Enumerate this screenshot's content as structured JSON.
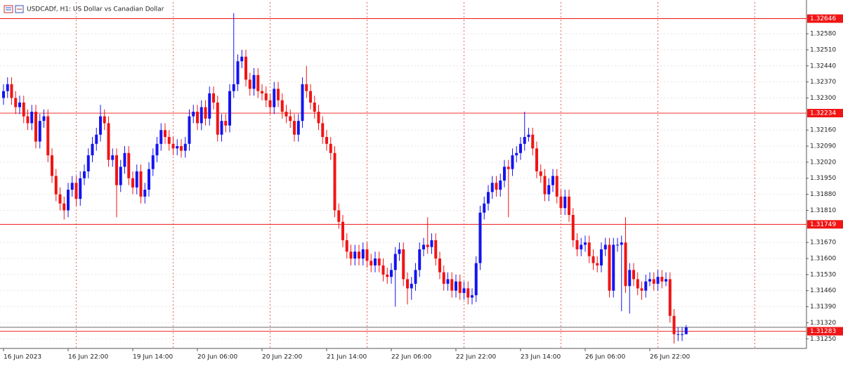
{
  "chart_data": {
    "type": "candlestick",
    "title": "USDCADf, H1:  US Dollar vs Canadian Dollar",
    "categories": [
      "16 Jun 2023",
      null,
      null,
      null,
      null,
      null,
      null,
      null,
      null,
      null,
      null,
      null,
      null,
      null,
      null,
      null,
      "16 Jun 22:00",
      null,
      null,
      null,
      null,
      null,
      null,
      null,
      null,
      null,
      null,
      null,
      null,
      null,
      null,
      null,
      "19 Jun 14:00",
      null,
      null,
      null,
      null,
      null,
      null,
      null,
      null,
      null,
      null,
      null,
      null,
      null,
      null,
      null,
      "20 Jun 06:00",
      null,
      null,
      null,
      null,
      null,
      null,
      null,
      null,
      null,
      null,
      null,
      null,
      null,
      null,
      null,
      "20 Jun 22:00",
      null,
      null,
      null,
      null,
      null,
      null,
      null,
      null,
      null,
      null,
      null,
      null,
      null,
      null,
      null,
      "21 Jun 14:00",
      null,
      null,
      null,
      null,
      null,
      null,
      null,
      null,
      null,
      null,
      null,
      null,
      null,
      null,
      null,
      "22 Jun 06:00",
      null,
      null,
      null,
      null,
      null,
      null,
      null,
      null,
      null,
      null,
      null,
      null,
      null,
      null,
      null,
      "22 Jun 22:00",
      null,
      null,
      null,
      null,
      null,
      null,
      null,
      null,
      null,
      null,
      null,
      null,
      null,
      null,
      null,
      "23 Jun 14:00",
      null,
      null,
      null,
      null,
      null,
      null,
      null,
      null,
      null,
      null,
      null,
      null,
      null,
      null,
      null,
      "26 Jun 06:00",
      null,
      null,
      null,
      null,
      null,
      null,
      null,
      null,
      null,
      null,
      null,
      null,
      null,
      null,
      null,
      "26 Jun 22:00",
      null,
      null,
      null,
      null,
      null,
      null,
      null,
      null,
      null
    ],
    "open": [
      1.323,
      1.3233,
      1.3236,
      1.323,
      1.3226,
      1.3228,
      1.3222,
      1.3219,
      1.3224,
      1.3211,
      1.322,
      1.3222,
      1.3205,
      1.3196,
      1.3188,
      1.3184,
      1.3181,
      1.319,
      1.3193,
      1.3186,
      1.3195,
      1.3198,
      1.3205,
      1.321,
      1.3214,
      1.3222,
      1.3219,
      1.3203,
      1.3205,
      1.3192,
      1.32,
      1.3206,
      1.3195,
      1.3191,
      1.3198,
      1.3187,
      1.319,
      1.3199,
      1.3205,
      1.321,
      1.3216,
      1.3213,
      1.321,
      1.3208,
      1.3209,
      1.3207,
      1.321,
      1.3222,
      1.3224,
      1.3219,
      1.3226,
      1.3221,
      1.3232,
      1.3228,
      1.3214,
      1.322,
      1.3218,
      1.3233,
      1.3236,
      1.3246,
      1.3248,
      1.3238,
      1.3234,
      1.324,
      1.3233,
      1.3232,
      1.3229,
      1.3226,
      1.3234,
      1.3229,
      1.3224,
      1.3222,
      1.322,
      1.3214,
      1.322,
      1.3236,
      1.3233,
      1.3228,
      1.3224,
      1.3219,
      1.3213,
      1.321,
      1.3206,
      1.3181,
      1.3176,
      1.3168,
      1.3163,
      1.316,
      1.3163,
      1.316,
      1.3164,
      1.3159,
      1.3157,
      1.316,
      1.3157,
      1.3153,
      1.3152,
      1.3155,
      1.3162,
      1.3164,
      1.3151,
      1.3147,
      1.3149,
      1.3155,
      1.3164,
      1.3166,
      1.3165,
      1.3168,
      1.316,
      1.3154,
      1.3149,
      1.3151,
      1.3146,
      1.315,
      1.3145,
      1.3147,
      1.3143,
      1.3144,
      1.3158,
      1.318,
      1.3184,
      1.3189,
      1.3193,
      1.319,
      1.3194,
      1.32,
      1.3199,
      1.3205,
      1.3206,
      1.321,
      1.3213,
      1.3214,
      1.3208,
      1.3198,
      1.3196,
      1.3188,
      1.3192,
      1.3196,
      1.3187,
      1.3182,
      1.3187,
      1.3179,
      1.3168,
      1.3164,
      1.3166,
      1.3167,
      1.3161,
      1.3158,
      1.3157,
      1.3164,
      1.3166,
      1.3146,
      1.3166,
      1.3166,
      1.3167,
      1.3148,
      1.3155,
      1.3151,
      1.3147,
      1.3146,
      1.315,
      1.3151,
      1.3149,
      1.3152,
      1.315,
      1.3151,
      1.3135,
      1.3127,
      1.3127,
      1.3127
    ],
    "high": [
      1.3236,
      1.3239,
      1.3239,
      1.3233,
      1.3231,
      1.3231,
      1.3225,
      1.3227,
      1.3227,
      1.3223,
      1.3225,
      1.3225,
      1.3208,
      1.3199,
      1.3191,
      1.3187,
      1.3193,
      1.3196,
      1.3196,
      1.3198,
      1.3201,
      1.3208,
      1.3213,
      1.3217,
      1.3227,
      1.3225,
      1.3222,
      1.3208,
      1.3208,
      1.3203,
      1.3209,
      1.3209,
      1.3198,
      1.3201,
      1.3201,
      1.3193,
      1.3202,
      1.3208,
      1.3213,
      1.3219,
      1.3219,
      1.3216,
      1.3213,
      1.3212,
      1.3212,
      1.3213,
      1.3225,
      1.3227,
      1.3227,
      1.3229,
      1.3229,
      1.3235,
      1.3235,
      1.3231,
      1.3223,
      1.3223,
      1.3236,
      1.3267,
      1.3249,
      1.3251,
      1.3251,
      1.3241,
      1.3243,
      1.3243,
      1.3236,
      1.3235,
      1.3232,
      1.3237,
      1.3237,
      1.3232,
      1.3227,
      1.3225,
      1.3223,
      1.3223,
      1.3239,
      1.3244,
      1.3236,
      1.3231,
      1.3227,
      1.3222,
      1.3216,
      1.3213,
      1.3209,
      1.3184,
      1.3179,
      1.3171,
      1.3166,
      1.3166,
      1.3166,
      1.3167,
      1.3167,
      1.3162,
      1.3163,
      1.3163,
      1.316,
      1.3156,
      1.3158,
      1.3165,
      1.3167,
      1.3167,
      1.3154,
      1.3152,
      1.3158,
      1.3167,
      1.3169,
      1.3178,
      1.3171,
      1.3171,
      1.3163,
      1.3157,
      1.3154,
      1.3154,
      1.3153,
      1.3153,
      1.315,
      1.315,
      1.3147,
      1.3161,
      1.3183,
      1.3187,
      1.3192,
      1.3196,
      1.3196,
      1.3197,
      1.3203,
      1.3203,
      1.3208,
      1.3209,
      1.3213,
      1.3224,
      1.3217,
      1.3217,
      1.3211,
      1.3201,
      1.3199,
      1.3195,
      1.3199,
      1.3199,
      1.319,
      1.319,
      1.319,
      1.3182,
      1.3171,
      1.3169,
      1.317,
      1.317,
      1.3164,
      1.3161,
      1.3167,
      1.3169,
      1.3169,
      1.3169,
      1.3169,
      1.317,
      1.3178,
      1.3158,
      1.3158,
      1.3154,
      1.315,
      1.3153,
      1.3154,
      1.3154,
      1.3155,
      1.3155,
      1.3154,
      1.3154,
      1.3138,
      1.313,
      1.313,
      1.3131
    ],
    "low": [
      1.3227,
      1.323,
      1.3227,
      1.3223,
      1.3223,
      1.3219,
      1.3216,
      1.3216,
      1.3208,
      1.3208,
      1.3217,
      1.3202,
      1.3193,
      1.3185,
      1.3181,
      1.3177,
      1.3178,
      1.3187,
      1.3183,
      1.3183,
      1.3192,
      1.3195,
      1.3202,
      1.3207,
      1.3211,
      1.3216,
      1.32,
      1.32,
      1.3178,
      1.3189,
      1.3197,
      1.3192,
      1.3188,
      1.3188,
      1.3184,
      1.3184,
      1.3187,
      1.3196,
      1.3202,
      1.3207,
      1.321,
      1.3207,
      1.3205,
      1.3205,
      1.3204,
      1.3204,
      1.3207,
      1.3219,
      1.3216,
      1.3216,
      1.3218,
      1.3218,
      1.3225,
      1.3211,
      1.3211,
      1.3215,
      1.3215,
      1.323,
      1.3233,
      1.3243,
      1.3235,
      1.3231,
      1.3231,
      1.323,
      1.3229,
      1.3226,
      1.3223,
      1.3223,
      1.3226,
      1.3221,
      1.3219,
      1.3217,
      1.3211,
      1.3211,
      1.3217,
      1.323,
      1.3225,
      1.3221,
      1.3216,
      1.321,
      1.3207,
      1.3203,
      1.3178,
      1.3173,
      1.3165,
      1.316,
      1.3157,
      1.3157,
      1.3157,
      1.3157,
      1.3156,
      1.3154,
      1.3154,
      1.3154,
      1.315,
      1.3149,
      1.3149,
      1.3139,
      1.3159,
      1.3148,
      1.314,
      1.3142,
      1.3146,
      1.3152,
      1.3161,
      1.3162,
      1.3162,
      1.3157,
      1.3151,
      1.3146,
      1.3146,
      1.3143,
      1.3143,
      1.3142,
      1.3142,
      1.314,
      1.314,
      1.3141,
      1.3155,
      1.3177,
      1.3181,
      1.3186,
      1.3187,
      1.3187,
      1.3191,
      1.3178,
      1.3196,
      1.3202,
      1.3203,
      1.3207,
      1.3211,
      1.3205,
      1.3195,
      1.3193,
      1.3185,
      1.3185,
      1.3189,
      1.3184,
      1.3179,
      1.3179,
      1.3176,
      1.3165,
      1.3161,
      1.3161,
      1.3163,
      1.3158,
      1.3155,
      1.3154,
      1.3154,
      1.3161,
      1.3143,
      1.3143,
      1.3163,
      1.3137,
      1.3145,
      1.3136,
      1.3148,
      1.3144,
      1.3142,
      1.3143,
      1.3148,
      1.3146,
      1.3146,
      1.3147,
      1.3148,
      1.3132,
      1.3123,
      1.3124,
      1.3124,
      1.3127
    ],
    "close": [
      1.3233,
      1.3236,
      1.323,
      1.3226,
      1.3228,
      1.3222,
      1.3219,
      1.3224,
      1.3211,
      1.322,
      1.3222,
      1.3205,
      1.3196,
      1.3188,
      1.3184,
      1.3181,
      1.319,
      1.3193,
      1.3186,
      1.3195,
      1.3198,
      1.3205,
      1.321,
      1.3214,
      1.3222,
      1.3219,
      1.3203,
      1.3205,
      1.3192,
      1.32,
      1.3206,
      1.3195,
      1.3191,
      1.3198,
      1.3187,
      1.319,
      1.3199,
      1.3205,
      1.321,
      1.3216,
      1.3213,
      1.321,
      1.3208,
      1.3209,
      1.3207,
      1.321,
      1.3222,
      1.3224,
      1.3219,
      1.3226,
      1.3221,
      1.3232,
      1.3228,
      1.3214,
      1.322,
      1.3218,
      1.3233,
      1.3236,
      1.3246,
      1.3248,
      1.3238,
      1.3234,
      1.324,
      1.3233,
      1.3232,
      1.3229,
      1.3226,
      1.3234,
      1.3229,
      1.3224,
      1.3222,
      1.322,
      1.3214,
      1.322,
      1.3236,
      1.3233,
      1.3228,
      1.3224,
      1.3219,
      1.3213,
      1.321,
      1.3206,
      1.3181,
      1.3176,
      1.3168,
      1.3163,
      1.316,
      1.3163,
      1.316,
      1.3164,
      1.3159,
      1.3157,
      1.316,
      1.3157,
      1.3153,
      1.3152,
      1.3155,
      1.3162,
      1.3164,
      1.3151,
      1.3147,
      1.3149,
      1.3155,
      1.3164,
      1.3166,
      1.3165,
      1.3168,
      1.316,
      1.3154,
      1.3149,
      1.3151,
      1.3146,
      1.315,
      1.3145,
      1.3147,
      1.3143,
      1.3144,
      1.3158,
      1.318,
      1.3184,
      1.3189,
      1.3193,
      1.319,
      1.3194,
      1.32,
      1.3199,
      1.3205,
      1.3206,
      1.321,
      1.3213,
      1.3214,
      1.3208,
      1.3198,
      1.3196,
      1.3188,
      1.3192,
      1.3196,
      1.3187,
      1.3182,
      1.3187,
      1.3179,
      1.3168,
      1.3164,
      1.3166,
      1.3167,
      1.3161,
      1.3158,
      1.3157,
      1.3164,
      1.3166,
      1.3146,
      1.3166,
      1.3166,
      1.3167,
      1.3148,
      1.3155,
      1.3151,
      1.3147,
      1.3146,
      1.315,
      1.3151,
      1.3149,
      1.3152,
      1.315,
      1.3151,
      1.3135,
      1.3127,
      1.3127,
      1.3127,
      1.313
    ],
    "up_color": "#1414f0",
    "down_color": "#f01414",
    "ylim": [
      1.31208,
      1.32718
    ],
    "yticks": [
      {
        "value": 1.3258,
        "label": "1.32580"
      },
      {
        "value": 1.3251,
        "label": "1.32510"
      },
      {
        "value": 1.3244,
        "label": "1.32440"
      },
      {
        "value": 1.3237,
        "label": "1.32370"
      },
      {
        "value": 1.323,
        "label": "1.32300"
      },
      {
        "value": 1.3216,
        "label": "1.32160"
      },
      {
        "value": 1.3209,
        "label": "1.32090"
      },
      {
        "value": 1.3202,
        "label": "1.32020"
      },
      {
        "value": 1.3195,
        "label": "1.31950"
      },
      {
        "value": 1.3188,
        "label": "1.31880"
      },
      {
        "value": 1.3181,
        "label": "1.31810"
      },
      {
        "value": 1.3167,
        "label": "1.31670"
      },
      {
        "value": 1.316,
        "label": "1.31600"
      },
      {
        "value": 1.3153,
        "label": "1.31530"
      },
      {
        "value": 1.3146,
        "label": "1.31460"
      },
      {
        "value": 1.3139,
        "label": "1.31390"
      },
      {
        "value": 1.3132,
        "label": "1.31320"
      },
      {
        "value": 1.3125,
        "label": "1.31250"
      }
    ],
    "grid": true,
    "price_lines": [
      1.32646,
      1.32234,
      1.31749,
      1.31283
    ],
    "price_line_color": "#f01414",
    "current_price": 1.313,
    "current_price_color": "#555555"
  }
}
